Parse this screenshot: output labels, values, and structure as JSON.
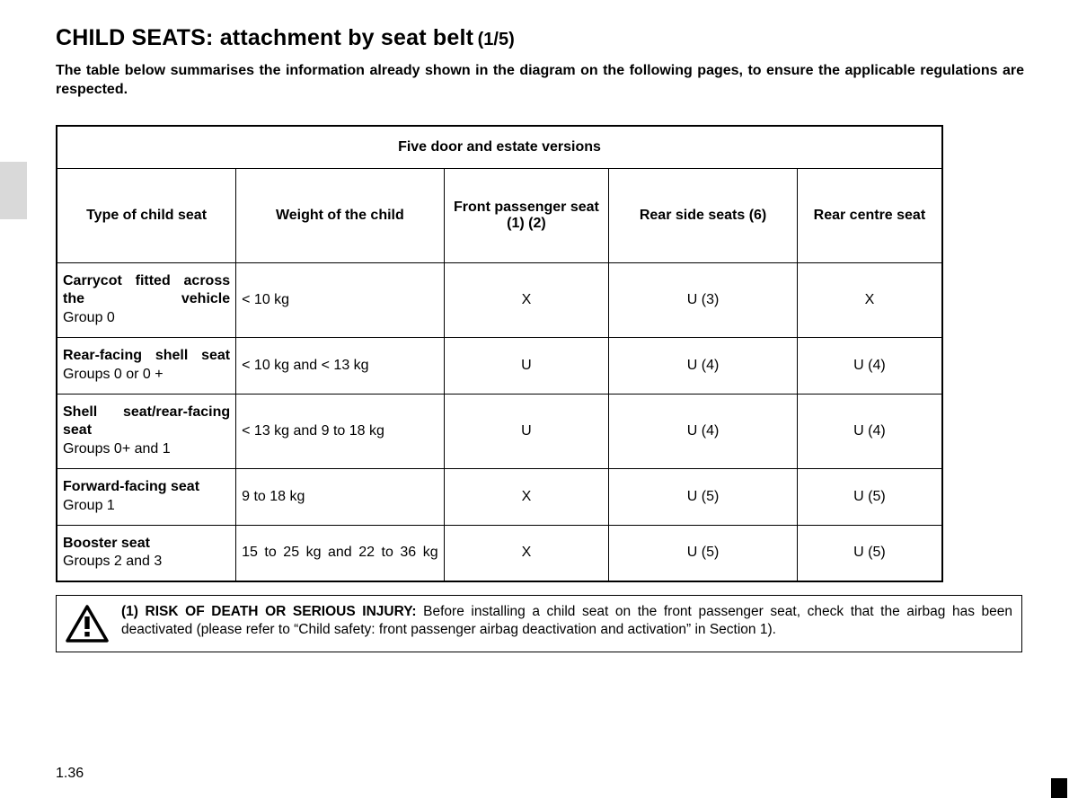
{
  "title_main": "CHILD SEATS: attachment by seat belt",
  "title_sub": "(1/5)",
  "summary": "The table below summarises the information already shown in the diagram on the following pages, to ensure the applicable regulations are respected.",
  "table": {
    "caption": "Five door and estate versions",
    "columns": [
      "Type of child seat",
      "Weight of the child",
      "Front passenger seat (1) (2)",
      "Rear side seats (6)",
      "Rear centre seat"
    ],
    "rows": [
      {
        "seat_name": "Carrycot fitted across the vehicle",
        "seat_group": "Group 0",
        "weight": "< 10 kg",
        "front": "X",
        "rear_side": "U (3)",
        "rear_centre": "X",
        "name_justify": true
      },
      {
        "seat_name": "Rear-facing shell seat",
        "seat_group": "Groups 0 or 0 +",
        "weight": "< 10 kg and < 13 kg",
        "front": "U",
        "rear_side": "U (4)",
        "rear_centre": "U (4)",
        "name_justify": true
      },
      {
        "seat_name": "Shell seat/rear-facing seat",
        "seat_group": "Groups 0+ and 1",
        "weight": "< 13 kg and 9 to 18 kg",
        "front": "U",
        "rear_side": "U (4)",
        "rear_centre": "U (4)",
        "name_justify": false
      },
      {
        "seat_name": "Forward-facing seat",
        "seat_group": "Group 1",
        "weight": "9 to 18 kg",
        "front": "X",
        "rear_side": "U (5)",
        "rear_centre": "U (5)",
        "name_justify": false
      },
      {
        "seat_name": "Booster seat",
        "seat_group": "Groups 2 and 3",
        "weight": "15 to 25 kg and 22 to 36 kg",
        "front": "X",
        "rear_side": "U (5)",
        "rear_centre": "U (5)",
        "name_justify": false,
        "weight_justify": true
      }
    ]
  },
  "warning": {
    "lead": "(1) RISK OF DEATH OR SERIOUS INJURY:",
    "body": " Before installing a child seat on the front passenger seat, check that the airbag has been deactivated (please refer to “Child safety: front passenger airbag deactivation and activation” in Section 1)."
  },
  "page_number": "1.36",
  "colors": {
    "background": "#ffffff",
    "text": "#000000",
    "tab": "#d9d9d9",
    "border": "#000000"
  }
}
